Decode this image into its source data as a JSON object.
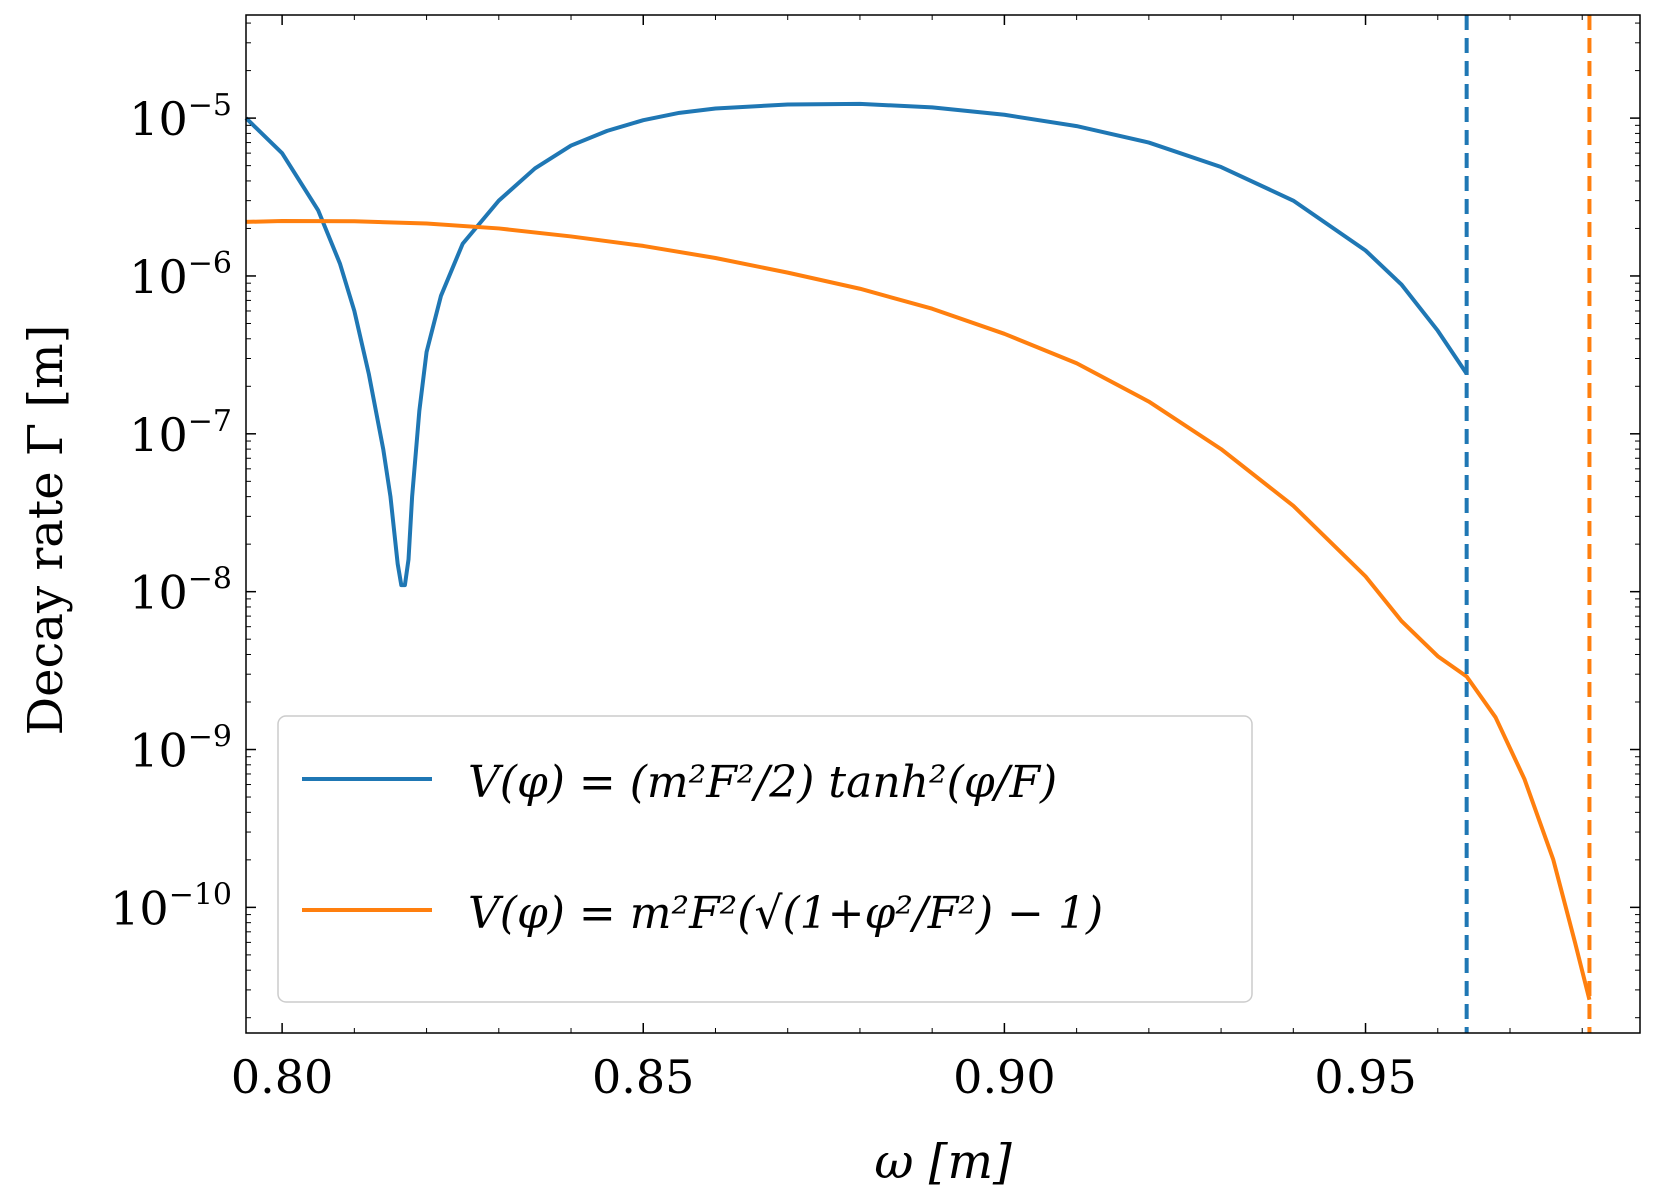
{
  "chart_data": {
    "type": "line",
    "xlabel": "ω [m]",
    "ylabel": "Decay rate Γ [m]",
    "x_ticks": [
      0.8,
      0.85,
      0.9,
      0.95
    ],
    "x_tick_labels": [
      "0.80",
      "0.85",
      "0.90",
      "0.95"
    ],
    "xlim": [
      0.795,
      0.988
    ],
    "y_scale": "log",
    "ylim": [
      1.6e-11,
      4.5e-05
    ],
    "y_ticks": [
      1e-05,
      1e-06,
      1e-07,
      1e-08,
      1e-09,
      1e-10
    ],
    "y_tick_labels": [
      {
        "base": "10",
        "exp": "−5"
      },
      {
        "base": "10",
        "exp": "−6"
      },
      {
        "base": "10",
        "exp": "−7"
      },
      {
        "base": "10",
        "exp": "−8"
      },
      {
        "base": "10",
        "exp": "−9"
      },
      {
        "base": "10",
        "exp": "−10"
      }
    ],
    "grid": false,
    "legend_position": "lower-left",
    "series": [
      {
        "name": "V(φ) = (m²F²/2) tanh²(φ/F)",
        "color": "#1f77b4",
        "x": [
          0.795,
          0.8,
          0.805,
          0.808,
          0.81,
          0.812,
          0.814,
          0.815,
          0.816,
          0.8165,
          0.817,
          0.8175,
          0.818,
          0.819,
          0.82,
          0.822,
          0.825,
          0.83,
          0.835,
          0.84,
          0.845,
          0.85,
          0.855,
          0.86,
          0.87,
          0.88,
          0.89,
          0.9,
          0.91,
          0.92,
          0.93,
          0.94,
          0.95,
          0.955,
          0.96,
          0.964
        ],
        "y": [
          1e-05,
          6e-06,
          2.6e-06,
          1.2e-06,
          6e-07,
          2.4e-07,
          8e-08,
          4e-08,
          1.5e-08,
          1.1e-08,
          1.1e-08,
          1.6e-08,
          4e-08,
          1.4e-07,
          3.3e-07,
          7.5e-07,
          1.6e-06,
          3e-06,
          4.8e-06,
          6.7e-06,
          8.3e-06,
          9.7e-06,
          1.08e-05,
          1.15e-05,
          1.22e-05,
          1.23e-05,
          1.17e-05,
          1.05e-05,
          8.9e-06,
          7e-06,
          4.9e-06,
          3e-06,
          1.45e-06,
          8.8e-07,
          4.5e-07,
          2.4e-07
        ]
      },
      {
        "name": "V(φ) = m²F²(√(1+φ²/F²) − 1)",
        "color": "#ff7f0e",
        "x": [
          0.795,
          0.8,
          0.81,
          0.82,
          0.83,
          0.84,
          0.85,
          0.86,
          0.87,
          0.88,
          0.89,
          0.9,
          0.91,
          0.92,
          0.93,
          0.94,
          0.95,
          0.955,
          0.96,
          0.964,
          0.968,
          0.972,
          0.976,
          0.979,
          0.981
        ],
        "y": [
          2.2e-06,
          2.23e-06,
          2.22e-06,
          2.15e-06,
          2e-06,
          1.78e-06,
          1.55e-06,
          1.3e-06,
          1.05e-06,
          8.3e-07,
          6.2e-07,
          4.3e-07,
          2.8e-07,
          1.6e-07,
          8e-08,
          3.5e-08,
          1.25e-08,
          6.5e-09,
          3.9e-09,
          2.9e-09,
          1.6e-09,
          6.5e-10,
          2e-10,
          6e-11,
          2.6e-11
        ]
      }
    ],
    "vertical_lines": [
      {
        "x": 0.964,
        "color": "#1f77b4",
        "style": "dashed"
      },
      {
        "x": 0.981,
        "color": "#ff7f0e",
        "style": "dashed"
      }
    ]
  }
}
